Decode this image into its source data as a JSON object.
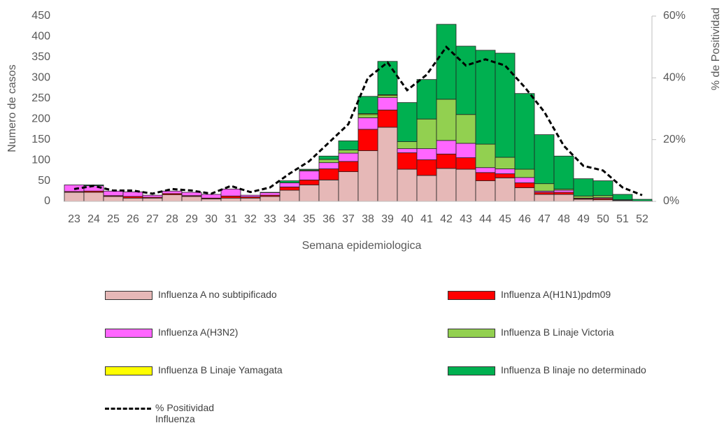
{
  "chart_data": {
    "type": "bar",
    "x_label": "Semana epidemiologica",
    "y_label": "Numero de casos",
    "y2_label": "% de Positividad",
    "categories": [
      "23",
      "24",
      "25",
      "26",
      "27",
      "28",
      "29",
      "30",
      "31",
      "32",
      "33",
      "34",
      "35",
      "36",
      "37",
      "38",
      "39",
      "40",
      "41",
      "42",
      "43",
      "44",
      "45",
      "46",
      "47",
      "48",
      "49",
      "50",
      "51",
      "52"
    ],
    "ylim": [
      0,
      450
    ],
    "yticks": [
      0,
      50,
      100,
      150,
      200,
      250,
      300,
      350,
      400,
      450
    ],
    "y2lim": [
      0,
      60
    ],
    "y2ticks": [
      {
        "value": 0,
        "label": "0%"
      },
      {
        "value": 20,
        "label": "20%"
      },
      {
        "value": 40,
        "label": "40%"
      },
      {
        "value": 60,
        "label": "60%"
      }
    ],
    "series": [
      {
        "name": "Influenza A no subtipificado",
        "color": "#e6b8b7",
        "values": [
          22,
          22,
          12,
          8,
          8,
          16,
          12,
          6,
          8,
          8,
          12,
          27,
          40,
          52,
          72,
          123,
          180,
          78,
          63,
          80,
          78,
          50,
          57,
          33,
          17,
          17,
          5,
          4,
          2,
          1
        ]
      },
      {
        "name": "Influenza A(H1N1)pdm09",
        "color": "#ff0000",
        "values": [
          2,
          3,
          2,
          4,
          2,
          3,
          2,
          2,
          5,
          3,
          3,
          8,
          12,
          27,
          25,
          52,
          42,
          40,
          38,
          35,
          28,
          20,
          10,
          12,
          5,
          5,
          2,
          3,
          0,
          0
        ]
      },
      {
        "name": "Influenza A(H3N2)",
        "color": "#ff66ff",
        "values": [
          16,
          13,
          11,
          11,
          5,
          6,
          8,
          9,
          17,
          4,
          6,
          10,
          22,
          15,
          20,
          28,
          30,
          10,
          27,
          33,
          35,
          12,
          12,
          13,
          3,
          5,
          1,
          2,
          1,
          0
        ]
      },
      {
        "name": "Influenza B Linaje Victoria",
        "color": "#92d050",
        "values": [
          0,
          0,
          0,
          0,
          0,
          0,
          0,
          0,
          0,
          0,
          0,
          0,
          2,
          8,
          8,
          8,
          5,
          17,
          72,
          100,
          70,
          57,
          28,
          20,
          18,
          3,
          5,
          5,
          1,
          0
        ]
      },
      {
        "name": "Influenza B Linaje Yamagata",
        "color": "#ffff00",
        "values": [
          0,
          0,
          0,
          0,
          0,
          0,
          0,
          0,
          0,
          0,
          0,
          0,
          0,
          0,
          0,
          2,
          2,
          0,
          0,
          0,
          0,
          0,
          0,
          0,
          0,
          0,
          0,
          0,
          0,
          0
        ]
      },
      {
        "name": "Influenza B linaje no determinado",
        "color": "#00b050",
        "values": [
          0,
          2,
          0,
          0,
          0,
          0,
          0,
          0,
          0,
          0,
          1,
          5,
          2,
          8,
          22,
          42,
          81,
          95,
          96,
          182,
          166,
          228,
          253,
          184,
          119,
          80,
          42,
          36,
          13,
          4
        ]
      },
      {
        "name": "% Positividad Influenza",
        "type": "line",
        "axis": "y2",
        "color": "#000000",
        "values": [
          4,
          5,
          3.5,
          3.5,
          2.5,
          4,
          3.5,
          2.5,
          5,
          3,
          4.5,
          9,
          13,
          19,
          25,
          40,
          45,
          36,
          41,
          50,
          44,
          46,
          44,
          37,
          29,
          18,
          11.5,
          10,
          4.5,
          2
        ]
      }
    ]
  }
}
